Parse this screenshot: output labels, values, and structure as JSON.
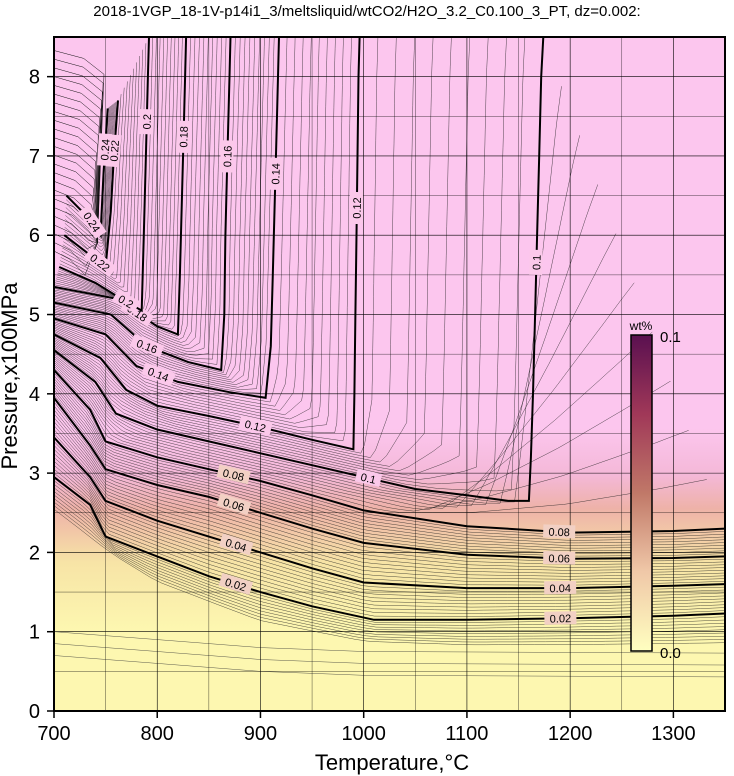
{
  "chart_data": {
    "type": "contour",
    "title": "2018-1VGP_18-1V-p14i1_3/meltsliquid/wtCO2/H2O_3.2_C0.100_3_PT, dz=0.002:",
    "xlabel": "Temperature,°C",
    "ylabel": "Pressure,x100MPa",
    "xlim": [
      700,
      1350
    ],
    "ylim": [
      0,
      8.5
    ],
    "x_ticks": [
      700,
      800,
      900,
      1000,
      1100,
      1200,
      1300
    ],
    "y_ticks": [
      0,
      1,
      2,
      3,
      4,
      5,
      6,
      7,
      8
    ],
    "grid": true,
    "colorbar": {
      "label": "wt%",
      "min": 0.0,
      "max": 0.1,
      "min_label": "0.0",
      "max_label": "0.1",
      "colors": [
        "#ffffc0",
        "#f0c8a8",
        "#c07868",
        "#a03858",
        "#5a1050"
      ]
    },
    "regions": {
      "low_color": "#fdf7b0",
      "high_color": "#fcc6ee"
    },
    "contours": [
      {
        "level": 0.02,
        "label": "0.02",
        "points": [
          [
            700,
            2.95
          ],
          [
            735,
            2.6
          ],
          [
            750,
            2.2
          ],
          [
            800,
            1.95
          ],
          [
            850,
            1.7
          ],
          [
            900,
            1.5
          ],
          [
            950,
            1.32
          ],
          [
            1010,
            1.15
          ],
          [
            1100,
            1.15
          ],
          [
            1200,
            1.17
          ],
          [
            1300,
            1.2
          ],
          [
            1350,
            1.23
          ]
        ]
      },
      {
        "level": 0.04,
        "label": "0.04",
        "points": [
          [
            700,
            3.45
          ],
          [
            735,
            2.95
          ],
          [
            750,
            2.65
          ],
          [
            800,
            2.4
          ],
          [
            850,
            2.2
          ],
          [
            900,
            2.0
          ],
          [
            950,
            1.8
          ],
          [
            1000,
            1.62
          ],
          [
            1100,
            1.55
          ],
          [
            1200,
            1.55
          ],
          [
            1300,
            1.58
          ],
          [
            1350,
            1.6
          ]
        ]
      },
      {
        "level": 0.06,
        "label": "0.06",
        "points": [
          [
            700,
            3.95
          ],
          [
            735,
            3.35
          ],
          [
            750,
            3.05
          ],
          [
            800,
            2.85
          ],
          [
            850,
            2.7
          ],
          [
            900,
            2.5
          ],
          [
            950,
            2.3
          ],
          [
            1000,
            2.12
          ],
          [
            1100,
            1.97
          ],
          [
            1200,
            1.92
          ],
          [
            1300,
            1.93
          ],
          [
            1350,
            1.95
          ]
        ]
      },
      {
        "level": 0.08,
        "label": "0.08",
        "points": [
          [
            700,
            4.3
          ],
          [
            735,
            3.8
          ],
          [
            750,
            3.4
          ],
          [
            800,
            3.2
          ],
          [
            850,
            3.05
          ],
          [
            900,
            2.9
          ],
          [
            950,
            2.72
          ],
          [
            1000,
            2.53
          ],
          [
            1100,
            2.33
          ],
          [
            1200,
            2.25
          ],
          [
            1300,
            2.27
          ],
          [
            1350,
            2.3
          ]
        ]
      },
      {
        "level": 0.1,
        "label": "0.1",
        "points": [
          [
            700,
            4.55
          ],
          [
            740,
            4.15
          ],
          [
            760,
            3.75
          ],
          [
            800,
            3.55
          ],
          [
            850,
            3.4
          ],
          [
            900,
            3.25
          ],
          [
            950,
            3.1
          ],
          [
            1000,
            2.95
          ],
          [
            1050,
            2.8
          ],
          [
            1100,
            2.72
          ],
          [
            1140,
            2.65
          ],
          [
            1160,
            2.65
          ],
          [
            1162,
            3.2
          ],
          [
            1164,
            4.0
          ],
          [
            1166,
            5.0
          ],
          [
            1168,
            6.0
          ],
          [
            1170,
            7.0
          ],
          [
            1172,
            8.0
          ],
          [
            1174,
            8.5
          ]
        ]
      },
      {
        "level": 0.12,
        "label": "0.12",
        "points": [
          [
            700,
            4.75
          ],
          [
            745,
            4.45
          ],
          [
            770,
            4.05
          ],
          [
            800,
            3.85
          ],
          [
            850,
            3.72
          ],
          [
            900,
            3.58
          ],
          [
            950,
            3.42
          ],
          [
            990,
            3.3
          ],
          [
            991,
            4.0
          ],
          [
            992,
            5.0
          ],
          [
            993,
            6.0
          ],
          [
            994,
            7.0
          ],
          [
            995,
            8.0
          ],
          [
            996,
            8.5
          ]
        ]
      },
      {
        "level": 0.14,
        "label": "0.14",
        "points": [
          [
            700,
            4.95
          ],
          [
            750,
            4.75
          ],
          [
            780,
            4.35
          ],
          [
            820,
            4.15
          ],
          [
            870,
            4.02
          ],
          [
            905,
            3.95
          ],
          [
            910,
            4.6
          ],
          [
            912,
            5.5
          ],
          [
            914,
            6.5
          ],
          [
            916,
            7.5
          ],
          [
            918,
            8.5
          ]
        ]
      },
      {
        "level": 0.16,
        "label": "0.16",
        "points": [
          [
            700,
            5.15
          ],
          [
            755,
            5.0
          ],
          [
            790,
            4.6
          ],
          [
            830,
            4.4
          ],
          [
            862,
            4.3
          ],
          [
            865,
            5.0
          ],
          [
            866,
            6.0
          ],
          [
            868,
            7.0
          ],
          [
            870,
            8.0
          ],
          [
            871,
            8.5
          ]
        ]
      },
      {
        "level": 0.18,
        "label": "0.18",
        "points": [
          [
            700,
            5.35
          ],
          [
            760,
            5.2
          ],
          [
            800,
            4.85
          ],
          [
            820,
            4.75
          ],
          [
            822,
            5.5
          ],
          [
            824,
            6.5
          ],
          [
            826,
            7.5
          ],
          [
            828,
            8.5
          ]
        ]
      },
      {
        "level": 0.2,
        "label": "0.2",
        "points": [
          [
            705,
            5.6
          ],
          [
            740,
            5.4
          ],
          [
            765,
            5.2
          ],
          [
            785,
            5.05
          ],
          [
            787,
            6.0
          ],
          [
            789,
            7.0
          ],
          [
            791,
            8.0
          ],
          [
            792,
            8.5
          ]
        ]
      },
      {
        "level": 0.22,
        "label": "0.22",
        "points": [
          [
            710,
            6.0
          ],
          [
            730,
            5.8
          ],
          [
            750,
            5.6
          ],
          [
            755,
            6.3
          ],
          [
            758,
            7.0
          ],
          [
            762,
            7.7
          ]
        ]
      },
      {
        "level": 0.24,
        "label": "0.24",
        "points": [
          [
            712,
            6.5
          ],
          [
            735,
            6.2
          ],
          [
            745,
            6.0
          ],
          [
            748,
            6.8
          ],
          [
            752,
            7.6
          ]
        ]
      }
    ]
  }
}
